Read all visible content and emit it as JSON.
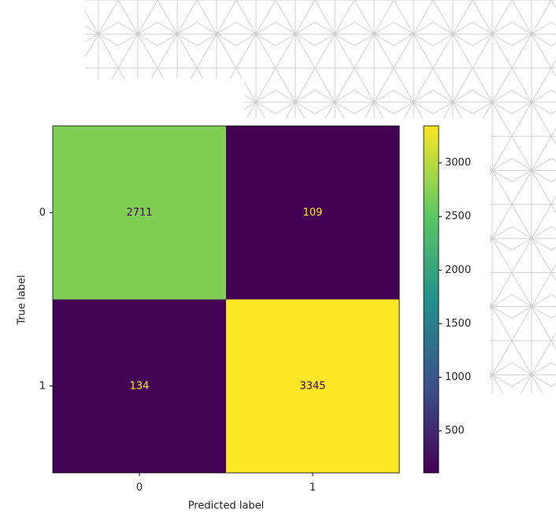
{
  "chart_data": {
    "type": "heatmap",
    "x_categories": [
      "0",
      "1"
    ],
    "y_categories": [
      "0",
      "1"
    ],
    "values": [
      [
        2711,
        109
      ],
      [
        134,
        3345
      ]
    ],
    "xlabel": "Predicted label",
    "ylabel": "True label",
    "colormap": "viridis",
    "clim": [
      109,
      3345
    ],
    "cticks": [
      500,
      1000,
      1500,
      2000,
      2500,
      3000
    ]
  }
}
